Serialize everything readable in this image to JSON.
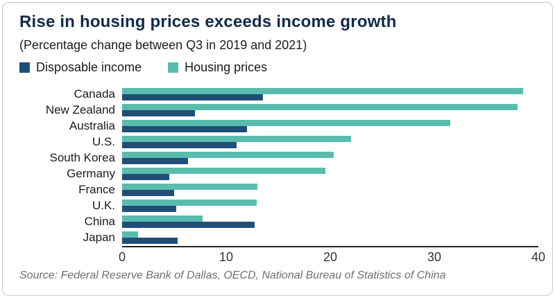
{
  "chart_data": {
    "type": "bar",
    "orientation": "horizontal",
    "title": "Rise in housing prices exceeds income growth",
    "subtitle": "(Percentage change between Q3 in 2019 and 2021)",
    "categories": [
      "Canada",
      "New Zealand",
      "Australia",
      "U.S.",
      "South Korea",
      "Germany",
      "France",
      "U.K.",
      "China",
      "Japan"
    ],
    "series": [
      {
        "name": "Disposable income",
        "color": "#1f4e79",
        "values": [
          13.5,
          7.0,
          12.0,
          11.0,
          6.3,
          4.5,
          5.0,
          5.2,
          12.7,
          5.3
        ]
      },
      {
        "name": "Housing prices",
        "color": "#5abcad",
        "values": [
          38.5,
          38.0,
          31.5,
          22.0,
          20.3,
          19.5,
          13.0,
          12.9,
          7.7,
          1.5
        ]
      }
    ],
    "bar_order_in_group": [
      "Housing prices",
      "Disposable income"
    ],
    "xlim": [
      0,
      40
    ],
    "xticks": [
      0,
      10,
      20,
      30,
      40
    ],
    "xlabel": "",
    "ylabel": "",
    "grid": false,
    "legend_position": "top"
  },
  "source": {
    "text": "Source: Federal Reserve Bank of Dallas, OECD, National Bureau of Statistics of China"
  }
}
